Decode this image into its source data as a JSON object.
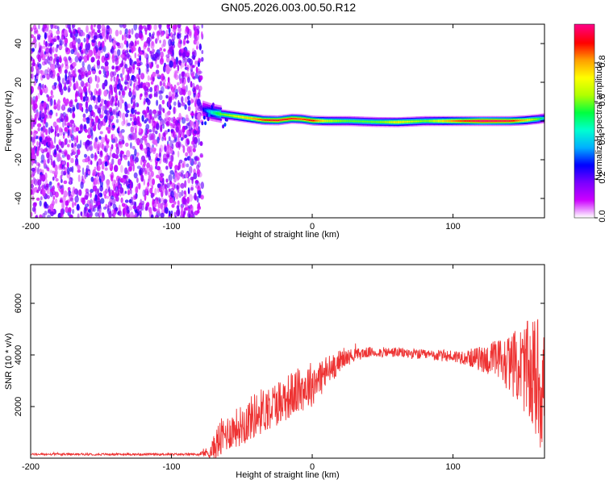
{
  "title": "GN05.2026.003.00.50.R12",
  "chart_data": [
    {
      "type": "heatmap",
      "xlabel": "Height of straight line (km)",
      "ylabel": "Frequency (Hz)",
      "xlim": [
        -200,
        165
      ],
      "ylim": [
        -50,
        50
      ],
      "xticks": [
        -200,
        -100,
        0,
        100
      ],
      "yticks": [
        -40,
        -20,
        0,
        20,
        40
      ],
      "noise_region_x": [
        -200,
        -78
      ],
      "ridge": {
        "x": [
          -78,
          -72,
          -65,
          -55,
          -45,
          -35,
          -25,
          -15,
          -8,
          0,
          10,
          25,
          45,
          60,
          80,
          100,
          120,
          140,
          150,
          160,
          165
        ],
        "freq": [
          6,
          4.5,
          3.5,
          2.5,
          1.5,
          0.5,
          0.3,
          1.2,
          1.0,
          0.2,
          0.0,
          0.0,
          -0.5,
          -0.6,
          0.0,
          0.0,
          0.0,
          0.0,
          0.3,
          1.0,
          1.5
        ],
        "amplitude": [
          0.25,
          0.45,
          0.6,
          0.7,
          0.78,
          0.9,
          0.95,
          0.9,
          0.88,
          0.92,
          0.7,
          0.6,
          0.6,
          0.75,
          0.62,
          0.85,
          1.0,
          0.95,
          0.8,
          0.6,
          0.45
        ]
      },
      "colorbar": {
        "label": "Normalized spectral amplitude",
        "range": [
          0,
          1
        ],
        "ticks": [
          "0.0",
          "0.2",
          "0.4",
          "0.6",
          "0.8"
        ],
        "tick_values": [
          0.0,
          0.2,
          0.4,
          0.6,
          0.8
        ],
        "colors": [
          "#ffffff",
          "#cc00ff",
          "#7a00ff",
          "#0000ff",
          "#00b0ff",
          "#00ffd0",
          "#00ff40",
          "#b0ff00",
          "#ffff00",
          "#ffa000",
          "#ff0000",
          "#ff0080"
        ]
      }
    },
    {
      "type": "line",
      "xlabel": "Height of straight line (km)",
      "ylabel": "SNR (10 * v/v)",
      "xlim": [
        -200,
        165
      ],
      "ylim": [
        0,
        7500
      ],
      "xticks": [
        -200,
        -100,
        0,
        100
      ],
      "yticks": [
        2000,
        4000,
        6000
      ],
      "color": "#ee3333",
      "series": [
        {
          "name": "SNR",
          "x": [
            -200,
            -150,
            -100,
            -80,
            -72,
            -66,
            -60,
            -50,
            -40,
            -30,
            -20,
            -10,
            0,
            10,
            20,
            30,
            40,
            60,
            80,
            100,
            110,
            120,
            130,
            140,
            150,
            160,
            165
          ],
          "y": [
            150,
            150,
            150,
            150,
            250,
            700,
            1000,
            1300,
            1700,
            2000,
            2300,
            2600,
            2900,
            3300,
            3800,
            4000,
            4100,
            4100,
            4000,
            3950,
            3900,
            3850,
            3800,
            3700,
            3500,
            3000,
            2900
          ],
          "noise": [
            40,
            40,
            40,
            50,
            300,
            800,
            700,
            800,
            900,
            900,
            900,
            900,
            900,
            700,
            400,
            250,
            200,
            200,
            200,
            250,
            300,
            500,
            800,
            1100,
            1700,
            2600,
            3000
          ]
        }
      ]
    }
  ]
}
